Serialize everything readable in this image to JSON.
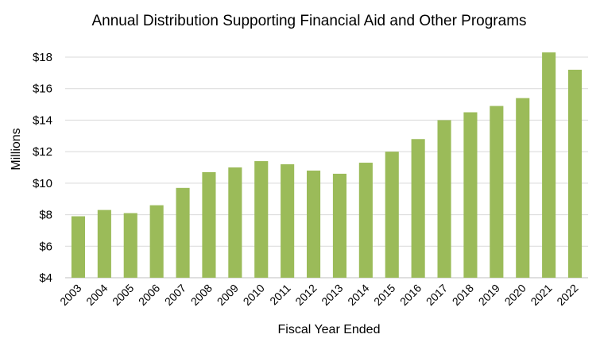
{
  "chart_data": {
    "type": "bar",
    "title": "Annual Distribution Supporting Financial Aid and Other Programs",
    "xlabel": "Fiscal Year Ended",
    "ylabel": "Millions",
    "categories": [
      "2003",
      "2004",
      "2005",
      "2006",
      "2007",
      "2008",
      "2009",
      "2010",
      "2011",
      "2012",
      "2013",
      "2014",
      "2015",
      "2016",
      "2017",
      "2018",
      "2019",
      "2020",
      "2021",
      "2022"
    ],
    "series": [
      {
        "values": [
          7.9,
          8.3,
          8.1,
          8.6,
          9.7,
          10.7,
          11.0,
          11.4,
          11.2,
          10.8,
          10.6,
          11.3,
          12.0,
          12.8,
          14.0,
          14.5,
          14.9,
          15.4,
          18.3,
          17.2
        ],
        "color": "#9bbb59"
      }
    ],
    "ylim": [
      4,
      18
    ],
    "yticks": [
      4,
      6,
      8,
      10,
      12,
      14,
      16,
      18
    ],
    "ytick_labels": [
      "$4",
      "$6",
      "$8",
      "$10",
      "$12",
      "$14",
      "$16",
      "$18"
    ],
    "grid": true,
    "legend": "none",
    "gridline_color": "#d9d9d9",
    "bar_color": "#9bbb59"
  }
}
